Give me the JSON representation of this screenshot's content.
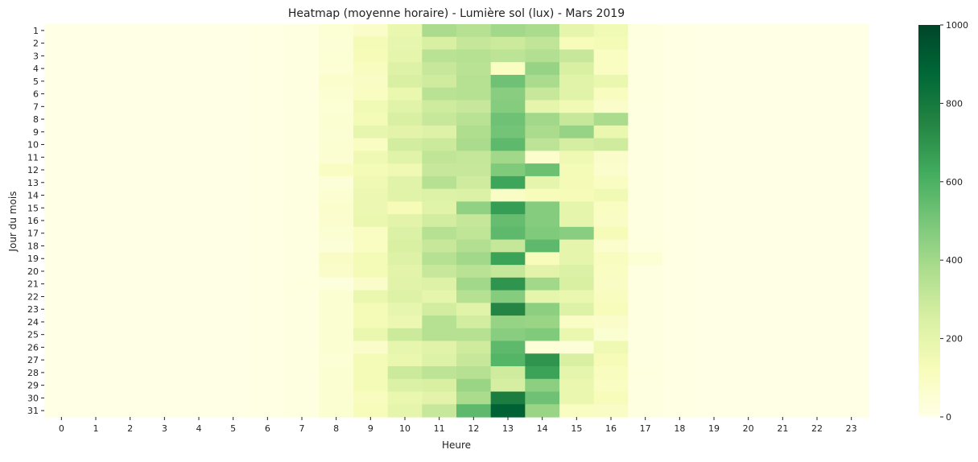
{
  "chart_data": {
    "type": "heatmap",
    "title": "Heatmap (moyenne horaire) - Lumière sol (lux) - Mars 2019",
    "xlabel": "Heure",
    "ylabel": "Jour du mois",
    "x_categories": [
      "0",
      "1",
      "2",
      "3",
      "4",
      "5",
      "6",
      "7",
      "8",
      "9",
      "10",
      "11",
      "12",
      "13",
      "14",
      "15",
      "16",
      "17",
      "18",
      "19",
      "20",
      "21",
      "22",
      "23"
    ],
    "y_categories": [
      "1",
      "2",
      "3",
      "4",
      "5",
      "6",
      "7",
      "8",
      "9",
      "10",
      "11",
      "12",
      "13",
      "14",
      "15",
      "16",
      "17",
      "18",
      "19",
      "20",
      "21",
      "22",
      "23",
      "24",
      "25",
      "26",
      "27",
      "28",
      "29",
      "30",
      "31"
    ],
    "values": [
      [
        0,
        0,
        0,
        0,
        0,
        0,
        2,
        15,
        50,
        80,
        180,
        380,
        350,
        400,
        380,
        200,
        150,
        20,
        5,
        0,
        0,
        0,
        0,
        0
      ],
      [
        0,
        0,
        0,
        0,
        0,
        0,
        2,
        12,
        45,
        140,
        190,
        250,
        310,
        290,
        320,
        120,
        140,
        15,
        4,
        0,
        0,
        0,
        0,
        0
      ],
      [
        0,
        0,
        0,
        0,
        0,
        0,
        2,
        12,
        50,
        130,
        200,
        340,
        350,
        330,
        360,
        300,
        100,
        12,
        4,
        0,
        0,
        0,
        0,
        0
      ],
      [
        0,
        0,
        0,
        0,
        0,
        0,
        2,
        12,
        50,
        110,
        230,
        300,
        340,
        100,
        430,
        250,
        100,
        12,
        3,
        0,
        0,
        0,
        0,
        0
      ],
      [
        0,
        0,
        0,
        0,
        0,
        0,
        2,
        13,
        70,
        90,
        250,
        280,
        350,
        520,
        380,
        220,
        180,
        15,
        3,
        0,
        0,
        0,
        0,
        0
      ],
      [
        0,
        0,
        0,
        0,
        0,
        0,
        2,
        15,
        60,
        100,
        180,
        340,
        350,
        460,
        300,
        220,
        110,
        20,
        5,
        0,
        0,
        0,
        0,
        0
      ],
      [
        0,
        0,
        0,
        0,
        0,
        0,
        2,
        15,
        50,
        150,
        220,
        280,
        300,
        470,
        200,
        150,
        80,
        15,
        3,
        0,
        0,
        0,
        0,
        0
      ],
      [
        0,
        0,
        0,
        0,
        0,
        0,
        2,
        12,
        60,
        140,
        250,
        300,
        340,
        520,
        400,
        300,
        380,
        15,
        3,
        0,
        0,
        0,
        0,
        0
      ],
      [
        0,
        0,
        0,
        0,
        0,
        0,
        2,
        12,
        55,
        190,
        210,
        230,
        370,
        510,
        380,
        430,
        180,
        12,
        3,
        0,
        0,
        0,
        0,
        0
      ],
      [
        0,
        0,
        0,
        0,
        0,
        0,
        2,
        12,
        60,
        100,
        270,
        290,
        380,
        560,
        330,
        260,
        280,
        12,
        3,
        0,
        0,
        0,
        0,
        0
      ],
      [
        0,
        0,
        0,
        0,
        0,
        0,
        2,
        10,
        60,
        160,
        220,
        320,
        310,
        400,
        70,
        160,
        80,
        12,
        3,
        0,
        0,
        0,
        0,
        0
      ],
      [
        0,
        0,
        0,
        0,
        0,
        0,
        2,
        12,
        100,
        140,
        160,
        300,
        300,
        480,
        530,
        140,
        70,
        15,
        3,
        0,
        0,
        0,
        0,
        0
      ],
      [
        0,
        0,
        0,
        0,
        0,
        0,
        2,
        12,
        40,
        160,
        220,
        350,
        280,
        640,
        200,
        140,
        100,
        15,
        4,
        0,
        0,
        0,
        0,
        0
      ],
      [
        0,
        0,
        0,
        0,
        0,
        0,
        2,
        10,
        60,
        170,
        220,
        230,
        240,
        90,
        120,
        130,
        150,
        12,
        4,
        0,
        0,
        0,
        0,
        0
      ],
      [
        0,
        0,
        0,
        0,
        0,
        0,
        3,
        15,
        70,
        170,
        130,
        220,
        440,
        670,
        470,
        200,
        100,
        12,
        3,
        0,
        0,
        0,
        0,
        0
      ],
      [
        0,
        0,
        0,
        0,
        0,
        0,
        3,
        15,
        65,
        180,
        210,
        270,
        310,
        540,
        470,
        200,
        90,
        12,
        4,
        0,
        0,
        0,
        0,
        0
      ],
      [
        0,
        0,
        0,
        0,
        0,
        0,
        2,
        15,
        60,
        100,
        240,
        350,
        320,
        560,
        480,
        460,
        130,
        12,
        3,
        0,
        0,
        0,
        0,
        0
      ],
      [
        0,
        0,
        0,
        0,
        0,
        0,
        2,
        12,
        40,
        100,
        250,
        300,
        360,
        310,
        560,
        200,
        70,
        20,
        3,
        0,
        0,
        0,
        0,
        0
      ],
      [
        0,
        0,
        0,
        0,
        0,
        0,
        2,
        12,
        90,
        140,
        230,
        350,
        400,
        650,
        120,
        200,
        110,
        50,
        5,
        0,
        0,
        0,
        0,
        0
      ],
      [
        0,
        0,
        0,
        0,
        0,
        0,
        2,
        12,
        80,
        140,
        210,
        300,
        340,
        310,
        210,
        240,
        100,
        12,
        3,
        0,
        0,
        0,
        0,
        0
      ],
      [
        0,
        0,
        0,
        0,
        0,
        0,
        5,
        20,
        25,
        80,
        220,
        230,
        400,
        700,
        400,
        250,
        90,
        12,
        3,
        0,
        0,
        0,
        0,
        0
      ],
      [
        0,
        0,
        0,
        0,
        0,
        0,
        2,
        12,
        60,
        180,
        230,
        200,
        350,
        470,
        200,
        180,
        110,
        12,
        3,
        0,
        0,
        0,
        0,
        0
      ],
      [
        0,
        0,
        0,
        0,
        0,
        0,
        2,
        12,
        60,
        140,
        190,
        270,
        220,
        750,
        450,
        230,
        120,
        12,
        3,
        0,
        0,
        0,
        0,
        0
      ],
      [
        0,
        0,
        0,
        0,
        0,
        0,
        2,
        12,
        60,
        140,
        170,
        350,
        270,
        430,
        420,
        90,
        80,
        12,
        3,
        0,
        0,
        0,
        0,
        0
      ],
      [
        0,
        0,
        0,
        0,
        0,
        0,
        2,
        12,
        60,
        180,
        290,
        350,
        350,
        460,
        480,
        180,
        60,
        12,
        3,
        0,
        0,
        0,
        0,
        0
      ],
      [
        0,
        0,
        0,
        0,
        0,
        0,
        2,
        12,
        60,
        80,
        190,
        220,
        280,
        560,
        40,
        40,
        160,
        12,
        3,
        0,
        0,
        0,
        0,
        0
      ],
      [
        0,
        0,
        0,
        0,
        0,
        0,
        2,
        12,
        50,
        140,
        180,
        230,
        300,
        580,
        700,
        250,
        130,
        12,
        3,
        0,
        0,
        0,
        0,
        0
      ],
      [
        0,
        0,
        0,
        0,
        0,
        0,
        2,
        12,
        60,
        140,
        290,
        330,
        350,
        280,
        650,
        200,
        110,
        20,
        5,
        0,
        0,
        0,
        0,
        0
      ],
      [
        0,
        0,
        0,
        0,
        0,
        0,
        2,
        12,
        60,
        140,
        240,
        250,
        420,
        260,
        450,
        180,
        100,
        12,
        3,
        0,
        0,
        0,
        0,
        0
      ],
      [
        0,
        0,
        0,
        0,
        0,
        0,
        2,
        12,
        60,
        110,
        180,
        210,
        380,
        780,
        520,
        180,
        120,
        12,
        3,
        0,
        0,
        0,
        0,
        0
      ],
      [
        0,
        0,
        0,
        0,
        0,
        0,
        2,
        12,
        60,
        120,
        200,
        300,
        560,
        900,
        420,
        100,
        90,
        12,
        3,
        0,
        0,
        0,
        0,
        0
      ]
    ],
    "colorbar": {
      "colormap": "Greens",
      "range": [
        0,
        1000
      ],
      "ticks": [
        "0",
        "200",
        "400",
        "600",
        "800",
        "1000"
      ],
      "colors": [
        "#ffffe5",
        "#f7fcb9",
        "#d9f0a3",
        "#addd8e",
        "#78c679",
        "#41ab5d",
        "#238443",
        "#006837",
        "#004529"
      ]
    },
    "grid": false
  }
}
